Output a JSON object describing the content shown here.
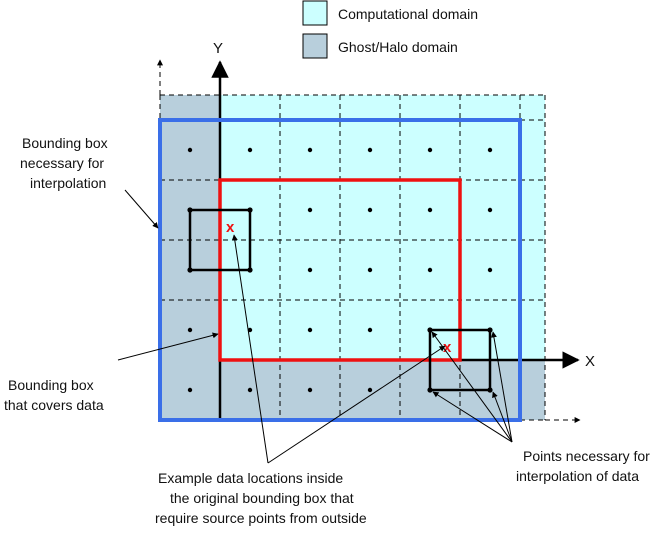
{
  "legend": {
    "items": [
      {
        "label": "Computational domain",
        "color": "#ccffff"
      },
      {
        "label": "Ghost/Halo domain",
        "color": "#b8cfdc"
      }
    ]
  },
  "axes": {
    "y_label": "Y",
    "x_label": "X"
  },
  "annotations": {
    "bbox_interp": [
      "Bounding box",
      "necessary for",
      "interpolation"
    ],
    "bbox_data": [
      "Bounding box",
      "that covers data"
    ],
    "example": [
      "Example data locations inside",
      "the original bounding box that",
      "require source points from outside"
    ],
    "points": [
      "Points necessary for",
      "interpolation of data"
    ]
  },
  "markers": {
    "sample_symbol": "x"
  },
  "colors": {
    "computational": "#ccffff",
    "ghost": "#b8cfdc",
    "interp_box": "#3a6fe8",
    "data_box": "#ee1111",
    "marker": "#ee1111",
    "ink": "#000000"
  }
}
